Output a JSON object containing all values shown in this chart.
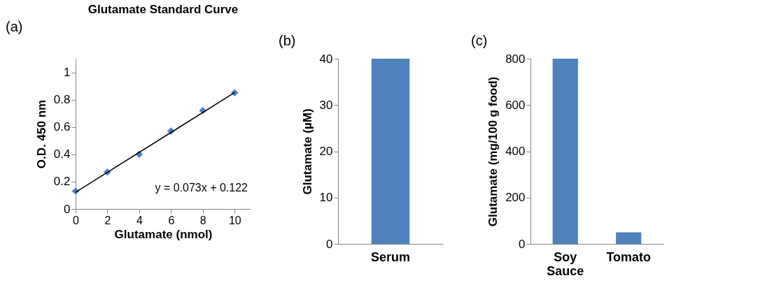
{
  "chart_data": [
    {
      "type": "scatter",
      "title": "Glutamate Standard Curve",
      "xlabel": "Glutamate (nmol)",
      "ylabel": "O.D. 450 nm",
      "annotations": [
        "(a)",
        "y = 0.073x + 0.122"
      ],
      "series": [
        {
          "type": "scatter",
          "marker": "diamond",
          "color": "#4f81bd",
          "x": [
            0,
            2,
            4,
            6,
            8,
            10
          ],
          "values": [
            0.13,
            0.27,
            0.4,
            0.57,
            0.72,
            0.85
          ]
        },
        {
          "type": "line",
          "color": "#000000",
          "x": [
            0,
            10
          ],
          "values": [
            0.122,
            0.852
          ]
        }
      ],
      "xlim": [
        0,
        11
      ],
      "xticks": [
        0,
        2,
        4,
        6,
        8,
        10
      ],
      "ylim": [
        0,
        1.1
      ],
      "yticks": [
        0,
        0.2,
        0.4,
        0.6,
        0.8,
        1
      ]
    },
    {
      "type": "bar",
      "ylabel": "Glutamate (µM)",
      "annotations": [
        "(b)"
      ],
      "categories": [
        "Serum"
      ],
      "values": [
        40
      ],
      "color": "#4f81bd",
      "ylim": [
        0,
        40
      ],
      "yticks": [
        0,
        10,
        20,
        30,
        40
      ]
    },
    {
      "type": "bar",
      "ylabel": "Glutamate (mg/100 g food)",
      "annotations": [
        "(c)"
      ],
      "categories": [
        "Soy Sauce",
        "Tomato"
      ],
      "values": [
        800,
        50
      ],
      "color": "#4f81bd",
      "ylim": [
        0,
        800
      ],
      "yticks": [
        0,
        200,
        400,
        600,
        800
      ]
    }
  ]
}
